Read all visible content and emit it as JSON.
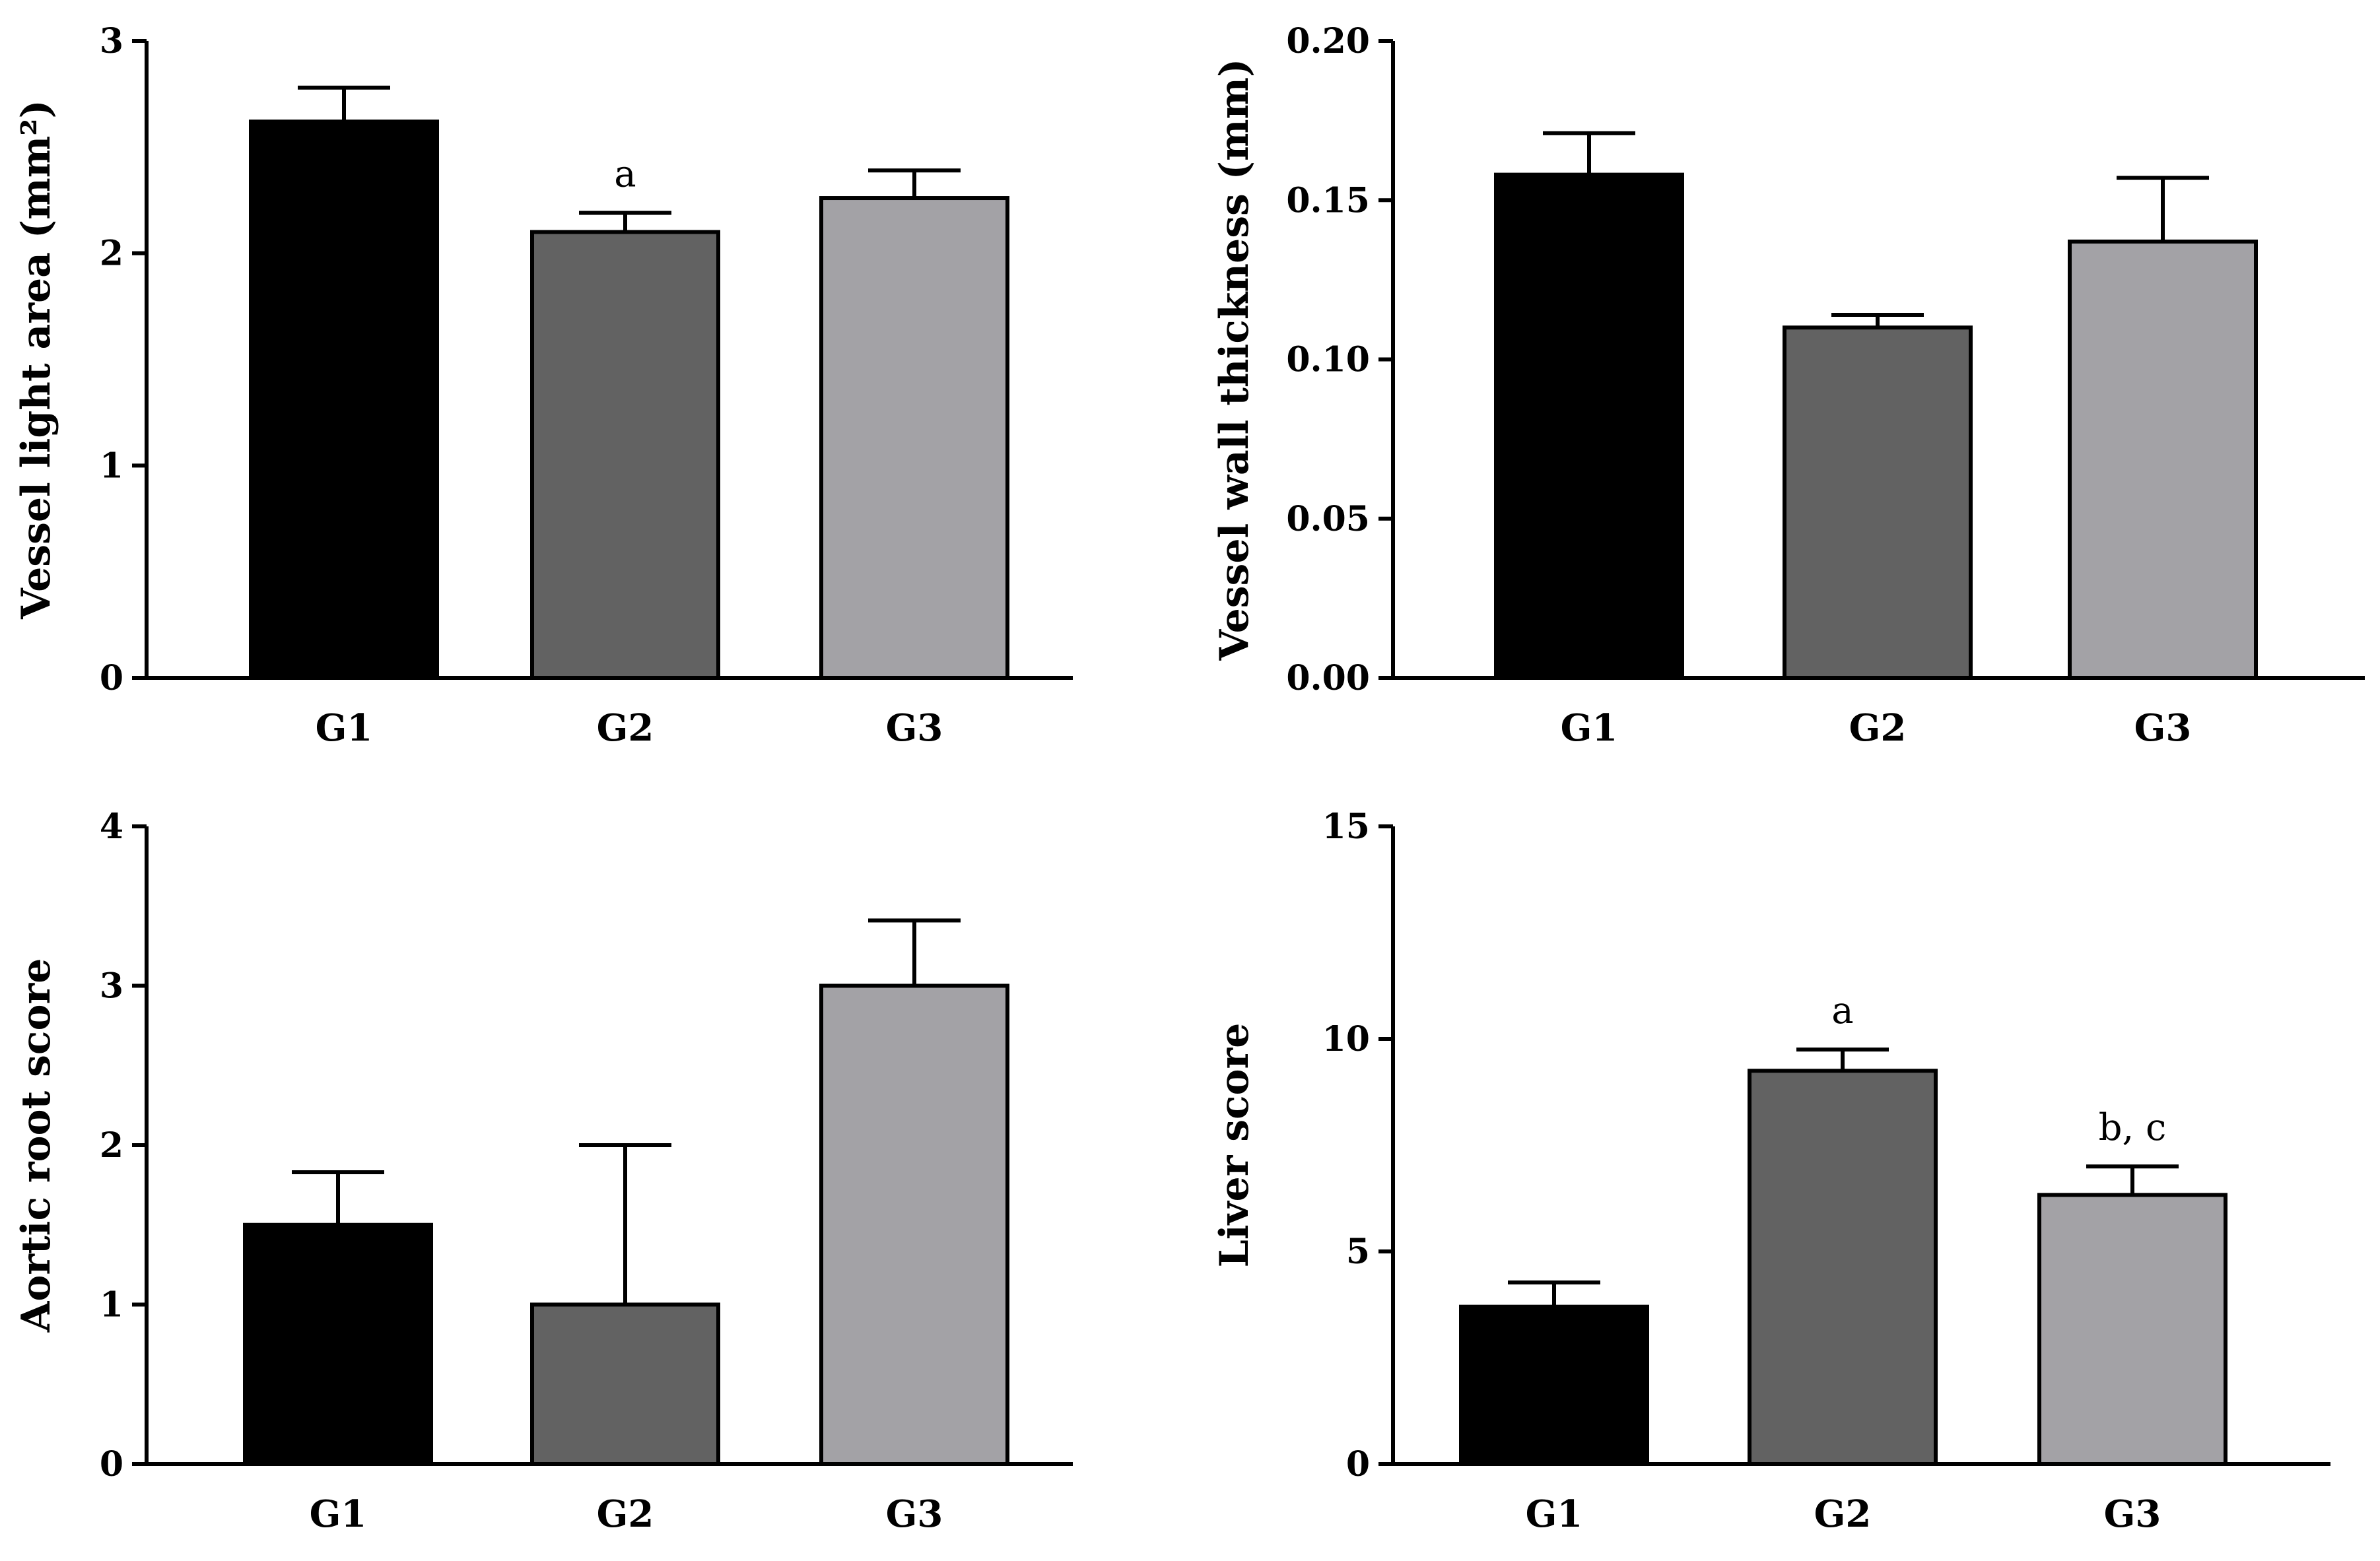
{
  "colors": {
    "G1": "#000000",
    "G2": "#626262",
    "G3": "#a3a2a6"
  },
  "chart_data": [
    {
      "type": "bar",
      "categories": [
        "G1",
        "G2",
        "G3"
      ],
      "values": [
        2.62,
        2.1,
        2.26
      ],
      "errors": [
        0.16,
        0.09,
        0.13
      ],
      "annotations": [
        "",
        "a",
        ""
      ],
      "ylabel": "Vessel light area (mm²)",
      "ylim": [
        0,
        3
      ],
      "yticks": [
        "0",
        "1",
        "2",
        "3"
      ],
      "yticks_values": [
        0,
        1,
        2,
        3
      ]
    },
    {
      "type": "bar",
      "categories": [
        "G1",
        "G2",
        "G3"
      ],
      "values": [
        0.158,
        0.11,
        0.137
      ],
      "errors": [
        0.013,
        0.004,
        0.02
      ],
      "annotations": [
        "",
        "",
        ""
      ],
      "ylabel": "Vessel wall thickness (mm)",
      "ylim": [
        0,
        0.2
      ],
      "yticks": [
        "0.00",
        "0.05",
        "0.10",
        "0.15",
        "0.20"
      ],
      "yticks_values": [
        0,
        0.05,
        0.1,
        0.15,
        0.2
      ]
    },
    {
      "type": "bar",
      "categories": [
        "G1",
        "G2",
        "G3"
      ],
      "values": [
        1.5,
        1.0,
        3.0
      ],
      "errors": [
        0.33,
        1.0,
        0.41
      ],
      "annotations": [
        "",
        "",
        ""
      ],
      "ylabel": "Aortic root score",
      "ylim": [
        0,
        4
      ],
      "yticks": [
        "0",
        "1",
        "2",
        "3",
        "4"
      ],
      "yticks_values": [
        0,
        1,
        2,
        3,
        4
      ]
    },
    {
      "type": "bar",
      "categories": [
        "G1",
        "G2",
        "G3"
      ],
      "values": [
        3.7,
        9.25,
        6.33
      ],
      "errors": [
        0.57,
        0.5,
        0.67
      ],
      "annotations": [
        "",
        "a",
        "b, c"
      ],
      "ylabel": "Liver score",
      "ylim": [
        0,
        15
      ],
      "yticks": [
        "0",
        "5",
        "10",
        "15"
      ],
      "yticks_values": [
        0,
        5,
        10,
        15
      ]
    }
  ]
}
